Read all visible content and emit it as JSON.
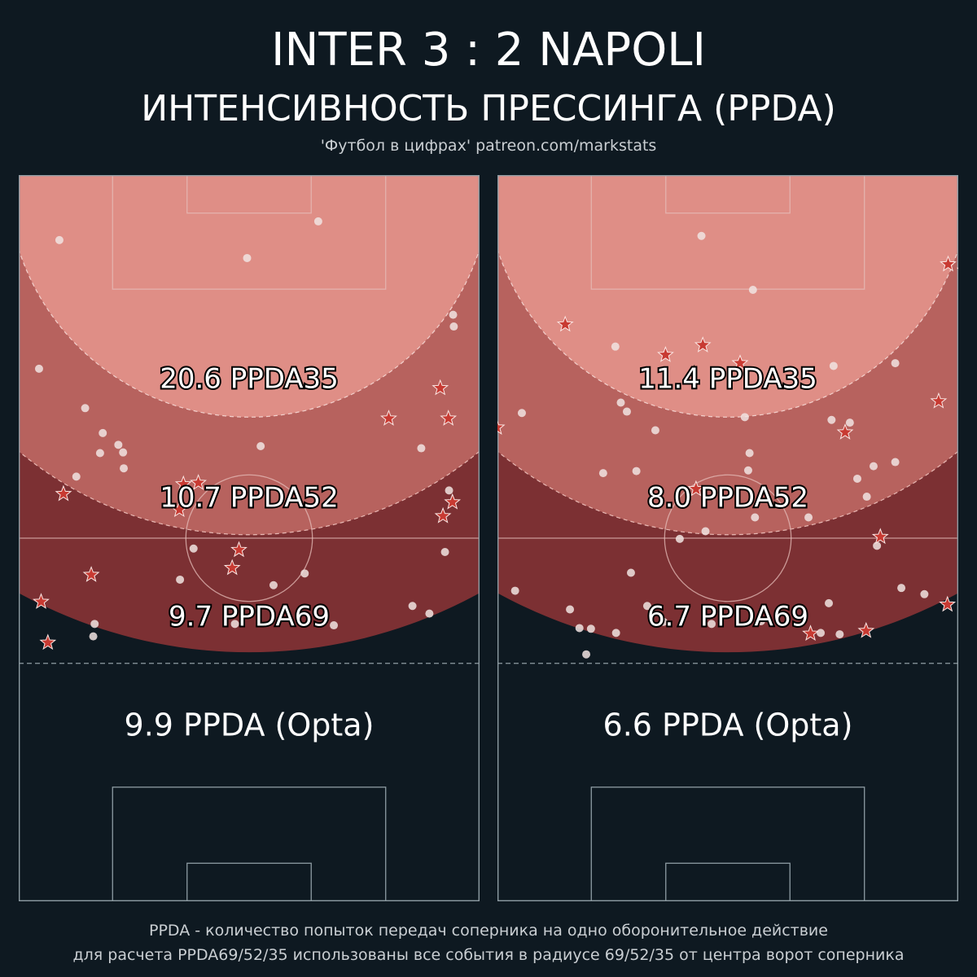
{
  "header": {
    "title": "INTER  3 : 2  NAPOLI",
    "subtitle": "ИНТЕНСИВНОСТЬ ПРЕССИНГА (PPDA)",
    "source": "'Футбол в цифрах' patreon.com/markstats"
  },
  "footer": {
    "line1": "PPDA - количество попыток передач соперника на одно оборонительное действие",
    "line2": "для расчета PPDA69/52/35 использованы все события в радиусе 69/52/35 от центра ворот соперника"
  },
  "colors": {
    "background": "#0e1921",
    "zone35": "#df8e86",
    "zone52": "#b7625e",
    "zone69": "#7c3033",
    "pitch_lines": "#8e9ca3",
    "star": "#c83a32",
    "dot": "#f1e4e2"
  },
  "chart_data": {
    "type": "scatter",
    "units": "metres",
    "pitch": {
      "length": 105,
      "width": 68
    },
    "panels": [
      {
        "name": "INTER",
        "labels": {
          "ppda35": "20.6 PPDA35",
          "ppda52": "10.7 PPDA52",
          "ppda69": "9.7 PPDA69",
          "opta": "9.9 PPDA (Opta)"
        },
        "dots": [
          [
            -28.0,
            9.4
          ],
          [
            10.2,
            6.7
          ],
          [
            -0.3,
            12.0
          ],
          [
            30.1,
            20.2
          ],
          [
            30.2,
            21.9
          ],
          [
            -31.0,
            28.0
          ],
          [
            -24.2,
            33.7
          ],
          [
            -21.6,
            37.3
          ],
          [
            -19.3,
            39.0
          ],
          [
            -18.6,
            40.1
          ],
          [
            -22.0,
            40.2
          ],
          [
            -18.5,
            42.4
          ],
          [
            -25.5,
            43.6
          ],
          [
            1.7,
            39.2
          ],
          [
            25.4,
            39.5
          ],
          [
            29.5,
            45.6
          ],
          [
            -8.2,
            54.0
          ],
          [
            28.9,
            54.5
          ],
          [
            24.1,
            62.3
          ],
          [
            -10.2,
            58.5
          ],
          [
            3.6,
            59.3
          ],
          [
            8.2,
            57.6
          ],
          [
            -22.8,
            64.9
          ],
          [
            -23.0,
            66.7
          ],
          [
            -2.1,
            64.9
          ],
          [
            26.6,
            63.4
          ],
          [
            12.5,
            65.1
          ]
        ],
        "stars": [
          [
            28.2,
            30.8
          ],
          [
            20.6,
            35.2
          ],
          [
            29.4,
            35.2
          ],
          [
            -27.4,
            46.1
          ],
          [
            30.0,
            47.3
          ],
          [
            28.6,
            49.3
          ],
          [
            -30.7,
            61.7
          ],
          [
            -29.7,
            67.6
          ],
          [
            -23.3,
            57.8
          ],
          [
            -9.7,
            44.7
          ],
          [
            -7.5,
            44.5
          ],
          [
            -10.3,
            48.4
          ],
          [
            -1.5,
            54.2
          ],
          [
            -2.5,
            56.8
          ]
        ]
      },
      {
        "name": "NAPOLI",
        "labels": {
          "ppda35": "11.4 PPDA35",
          "ppda52": "8.0 PPDA52",
          "ppda69": "6.7 PPDA69",
          "opta": "6.6 PPDA (Opta)"
        },
        "dots": [
          [
            -3.9,
            8.8
          ],
          [
            3.7,
            16.6
          ],
          [
            -16.6,
            24.8
          ],
          [
            15.6,
            27.6
          ],
          [
            24.7,
            27.2
          ],
          [
            -30.4,
            34.4
          ],
          [
            -15.8,
            32.9
          ],
          [
            -14.9,
            34.2
          ],
          [
            -10.7,
            36.9
          ],
          [
            2.5,
            35.0
          ],
          [
            15.3,
            35.4
          ],
          [
            18.0,
            35.8
          ],
          [
            3.2,
            40.2
          ],
          [
            21.5,
            42.1
          ],
          [
            -18.4,
            43.1
          ],
          [
            -13.5,
            42.8
          ],
          [
            3.0,
            42.7
          ],
          [
            11.9,
            49.5
          ],
          [
            -7.1,
            52.6
          ],
          [
            -3.3,
            51.5
          ],
          [
            22.0,
            53.6
          ],
          [
            -14.3,
            57.5
          ],
          [
            -31.4,
            60.1
          ],
          [
            -23.3,
            62.8
          ],
          [
            -20.2,
            65.6
          ],
          [
            -21.9,
            65.5
          ],
          [
            -16.5,
            66.2
          ],
          [
            -11.9,
            62.3
          ],
          [
            -9.5,
            64.6
          ],
          [
            -2.4,
            64.9
          ],
          [
            4.9,
            64.5
          ],
          [
            -20.9,
            69.3
          ],
          [
            13.7,
            66.2
          ],
          [
            16.5,
            66.4
          ],
          [
            14.9,
            61.9
          ],
          [
            25.6,
            59.7
          ],
          [
            29.0,
            60.6
          ],
          [
            24.7,
            41.5
          ],
          [
            19.1,
            43.9
          ],
          [
            20.5,
            46.5
          ],
          [
            4.0,
            49.5
          ]
        ],
        "stars": [
          [
            -24.0,
            21.6
          ],
          [
            32.5,
            12.9
          ],
          [
            35.0,
            13.8
          ],
          [
            31.1,
            32.7
          ],
          [
            17.3,
            37.2
          ],
          [
            -34.1,
            36.5
          ],
          [
            -4.7,
            45.4
          ],
          [
            22.5,
            52.3
          ],
          [
            12.2,
            66.3
          ],
          [
            20.4,
            65.9
          ],
          [
            32.4,
            62.1
          ],
          [
            -3.7,
            24.6
          ],
          [
            1.8,
            27.2
          ],
          [
            -9.2,
            26.0
          ]
        ]
      }
    ]
  }
}
